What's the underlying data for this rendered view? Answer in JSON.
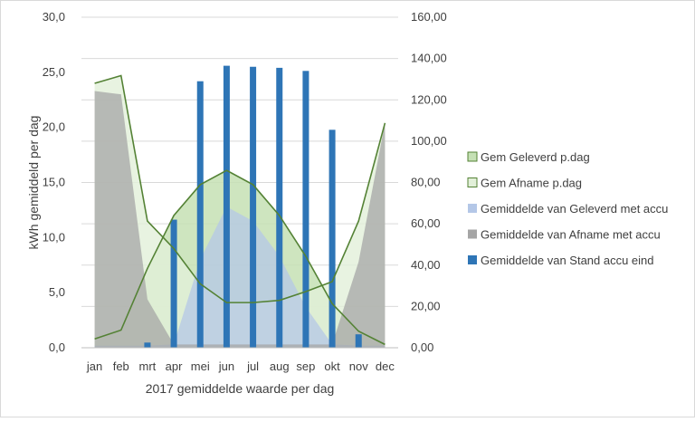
{
  "chart_data": {
    "type": "combo",
    "categories": [
      "jan",
      "feb",
      "mrt",
      "apr",
      "mei",
      "jun",
      "jul",
      "aug",
      "sep",
      "okt",
      "nov",
      "dec"
    ],
    "xlabel": "2017 gemiddelde waarde per dag",
    "ylabel": "kWh gemiddeld per dag",
    "y_left": {
      "lim": [
        0,
        30
      ],
      "ticks": [
        "0,0",
        "5,0",
        "10,0",
        "15,0",
        "20,0",
        "25,0",
        "30,0"
      ]
    },
    "y_right": {
      "lim": [
        0,
        160
      ],
      "ticks": [
        "0,00",
        "20,00",
        "40,00",
        "60,00",
        "80,00",
        "100,00",
        "120,00",
        "140,00",
        "160,00"
      ]
    },
    "grid": "horizontal",
    "legend_position": "right",
    "series": [
      {
        "name": "Gem Geleverd p.dag",
        "kind": "area",
        "axis": "left",
        "fill": "#c5e0b4",
        "stroke": "#548235",
        "values": [
          0.8,
          1.6,
          7.2,
          12.0,
          14.8,
          16.1,
          14.8,
          12.0,
          8.3,
          4.0,
          1.5,
          0.3
        ]
      },
      {
        "name": "Gem Afname p.dag",
        "kind": "area",
        "axis": "left",
        "fill": "#e2f0d9",
        "stroke": "#548235",
        "values": [
          24.0,
          24.7,
          11.5,
          9.0,
          5.8,
          4.1,
          4.1,
          4.3,
          5.1,
          6.0,
          11.5,
          20.4
        ]
      },
      {
        "name": "Gemiddelde van Geleverd met accu",
        "kind": "area",
        "axis": "left",
        "fill": "#b4c7e7",
        "values": [
          0.2,
          0.2,
          0.2,
          0.3,
          8.0,
          12.8,
          11.5,
          8.3,
          3.7,
          0.3,
          0.2,
          0.2
        ]
      },
      {
        "name": "Gemiddelde van Afname met accu",
        "kind": "area",
        "axis": "left",
        "fill": "#a5a5a5",
        "values": [
          23.3,
          23.0,
          4.4,
          0.3,
          0.3,
          0.3,
          0.3,
          0.3,
          0.3,
          0.3,
          7.8,
          20.4
        ]
      },
      {
        "name": "Gemiddelde van Stand accu eind",
        "kind": "bar",
        "axis": "right",
        "fill": "#2e75b6",
        "values": [
          0.0,
          0.0,
          2.5,
          62.0,
          129.0,
          136.5,
          136.0,
          135.5,
          134.0,
          105.5,
          6.5,
          0.0
        ]
      }
    ]
  }
}
